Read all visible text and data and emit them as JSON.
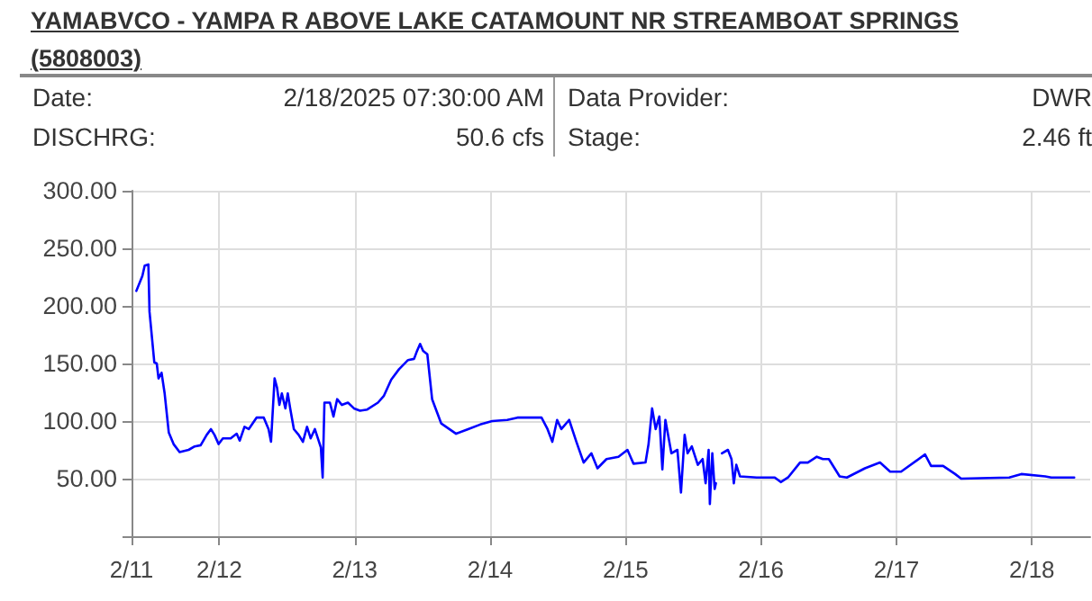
{
  "chart_data": {
    "type": "line",
    "title": "YAMABVCO - YAMPA R ABOVE LAKE CATAMOUNT NR STREAMBOAT SPRINGS (5808003)",
    "annotations": [
      "Date:",
      "2/18/2025 07:30:00 AM",
      "Data Provider:",
      "DWR",
      "DISCHRG:",
      "50.6 cfs",
      "Stage:",
      "2.46 ft"
    ],
    "x": [
      "2025-02-11T09:18",
      "2025-02-11T10:22",
      "2025-02-11T10:47",
      "2025-02-11T11:26",
      "2025-02-11T11:38",
      "2025-02-11T12:29",
      "2025-02-11T12:55",
      "2025-02-11T13:14",
      "2025-02-11T13:46",
      "2025-02-11T14:19",
      "2025-02-11T15:03",
      "2025-02-11T15:54",
      "2025-02-11T16:58",
      "2025-02-11T18:34",
      "2025-02-11T19:38",
      "2025-02-11T20:42",
      "2025-02-11T21:46",
      "2025-02-11T22:31",
      "2025-02-11T23:09",
      "2025-02-11T23:53",
      "2025-02-12T00:38",
      "2025-02-12T02:01",
      "2025-02-12T03:05",
      "2025-02-12T03:37",
      "2025-02-12T04:28",
      "2025-02-12T05:13",
      "2025-02-12T06:36",
      "2025-02-12T07:53",
      "2025-02-12T08:44",
      "2025-02-12T09:10",
      "2025-02-12T09:48",
      "2025-02-12T10:14",
      "2025-02-12T10:39",
      "2025-02-12T11:05",
      "2025-02-12T11:43",
      "2025-02-12T12:08",
      "2025-02-12T12:34",
      "2025-02-12T13:13",
      "2025-02-12T14:04",
      "2025-02-12T14:49",
      "2025-02-12T15:33",
      "2025-02-12T16:11",
      "2025-02-12T16:56",
      "2025-02-12T17:28",
      "2025-02-12T18:00",
      "2025-02-12T18:19",
      "2025-02-12T18:38",
      "2025-02-12T19:36",
      "2025-02-12T20:14",
      "2025-02-12T20:53",
      "2025-02-12T21:44",
      "2025-02-12T22:48",
      "2025-02-12T23:52",
      "2025-02-13T00:56",
      "2025-02-13T02:13",
      "2025-02-13T04:07",
      "2025-02-13T05:11",
      "2025-02-13T06:28",
      "2025-02-13T07:51",
      "2025-02-13T09:27",
      "2025-02-13T10:31",
      "2025-02-13T11:03",
      "2025-02-13T11:35",
      "2025-02-13T12:07",
      "2025-02-13T12:52",
      "2025-02-13T13:43",
      "2025-02-13T15:19",
      "2025-02-13T17:58",
      "2025-02-13T20:06",
      "2025-02-13T22:14",
      "2025-02-14T00:22",
      "2025-02-14T03:02",
      "2025-02-14T04:50",
      "2025-02-14T06:13",
      "2025-02-14T09:06",
      "2025-02-14T10:10",
      "2025-02-14T11:01",
      "2025-02-14T11:52",
      "2025-02-14T12:37",
      "2025-02-14T14:00",
      "2025-02-14T15:17",
      "2025-02-14T16:34",
      "2025-02-14T17:56",
      "2025-02-14T19:01",
      "2025-02-14T20:37",
      "2025-02-14T22:44",
      "2025-02-15T00:20",
      "2025-02-15T01:24",
      "2025-02-15T03:32",
      "2025-02-15T04:04",
      "2025-02-15T04:42",
      "2025-02-15T05:20",
      "2025-02-15T05:59",
      "2025-02-15T06:31",
      "2025-02-15T07:03",
      "2025-02-15T08:07",
      "2025-02-15T09:11",
      "2025-02-15T09:49",
      "2025-02-15T10:28",
      "2025-02-15T10:59",
      "2025-02-15T11:44",
      "2025-02-15T12:48",
      "2025-02-15T13:39",
      "2025-02-15T14:11",
      "2025-02-15T14:43",
      "2025-02-15T14:56",
      "2025-02-15T15:22",
      "2025-02-15T15:47",
      "2025-02-15T16:00",
      "2025-02-15T16:30",
      "2025-02-15T17:04",
      "2025-02-15T18:08",
      "2025-02-15T18:46",
      "2025-02-15T19:11",
      "2025-02-15T19:37",
      "2025-02-15T20:16",
      "2025-02-15T23:14",
      "2025-02-16T02:26",
      "2025-02-16T03:30",
      "2025-02-16T04:47",
      "2025-02-16T06:55",
      "2025-02-16T08:18",
      "2025-02-16T09:53",
      "2025-02-16T10:58",
      "2025-02-16T12:01",
      "2025-02-16T13:56",
      "2025-02-16T15:13",
      "2025-02-16T18:25",
      "2025-02-16T21:05",
      "2025-02-16T22:53",
      "2025-02-17T00:49",
      "2025-02-17T05:04",
      "2025-02-17T06:08",
      "2025-02-17T08:16",
      "2025-02-17T10:24",
      "2025-02-17T11:28",
      "2025-02-17T19:59",
      "2025-02-17T22:07",
      "2025-02-18T02:22",
      "2025-02-18T03:26",
      "2025-02-18T07:30"
    ],
    "series": [
      {
        "color": "#0000ff",
        "values": [
          213,
          226,
          235,
          236,
          195,
          151,
          150,
          137,
          142,
          124,
          90,
          80,
          73,
          75,
          78,
          79,
          88,
          93,
          88,
          80,
          85,
          85,
          89,
          83,
          95,
          93,
          103,
          103,
          93,
          82,
          137,
          129,
          114,
          124,
          111,
          124,
          111,
          93,
          88,
          82,
          95,
          85,
          93,
          85,
          77,
          51,
          116,
          116,
          104,
          119,
          114,
          116,
          111,
          109,
          110,
          116,
          122,
          136,
          145,
          153,
          154,
          161,
          167,
          161,
          158,
          119,
          98,
          89,
          93,
          97,
          100,
          101,
          103,
          103,
          103,
          93,
          82,
          101,
          93,
          101,
          82,
          64,
          72,
          59,
          67,
          69,
          75,
          63,
          64,
          80,
          111,
          93,
          104,
          58,
          101,
          72,
          75,
          38,
          88,
          72,
          78,
          62,
          67,
          46,
          75,
          28,
          72,
          41,
          46,
          null,
          72,
          75,
          67,
          46,
          62,
          52,
          51,
          51,
          47,
          51,
          64,
          64,
          69,
          67,
          67,
          52,
          51,
          59,
          64,
          56,
          56,
          71,
          61,
          61,
          54,
          50,
          51,
          54,
          52,
          51,
          51
        ]
      }
    ],
    "xlim": [
      "2025-02-11T08:27",
      "2025-02-18T10:20"
    ],
    "xticks": [
      {
        "value": "2025-02-11T08:27",
        "label": "2/11"
      },
      {
        "value": "2025-02-12",
        "label": "2/12"
      },
      {
        "value": "2025-02-13",
        "label": "2/13"
      },
      {
        "value": "2025-02-14",
        "label": "2/14"
      },
      {
        "value": "2025-02-15",
        "label": "2/15"
      },
      {
        "value": "2025-02-16",
        "label": "2/16"
      },
      {
        "value": "2025-02-17",
        "label": "2/17"
      },
      {
        "value": "2025-02-18",
        "label": "2/18"
      }
    ],
    "ylim": [
      0,
      300
    ],
    "yticks": [
      {
        "value": 0,
        "label": null
      },
      {
        "value": 50,
        "label": "50.00"
      },
      {
        "value": 100,
        "label": "100.00"
      },
      {
        "value": 150,
        "label": "150.00"
      },
      {
        "value": 200,
        "label": "200.00"
      },
      {
        "value": 250,
        "label": "250.00"
      },
      {
        "value": 300,
        "label": "300.00"
      }
    ],
    "grid": true,
    "marker": "none",
    "line_style": "solid"
  }
}
